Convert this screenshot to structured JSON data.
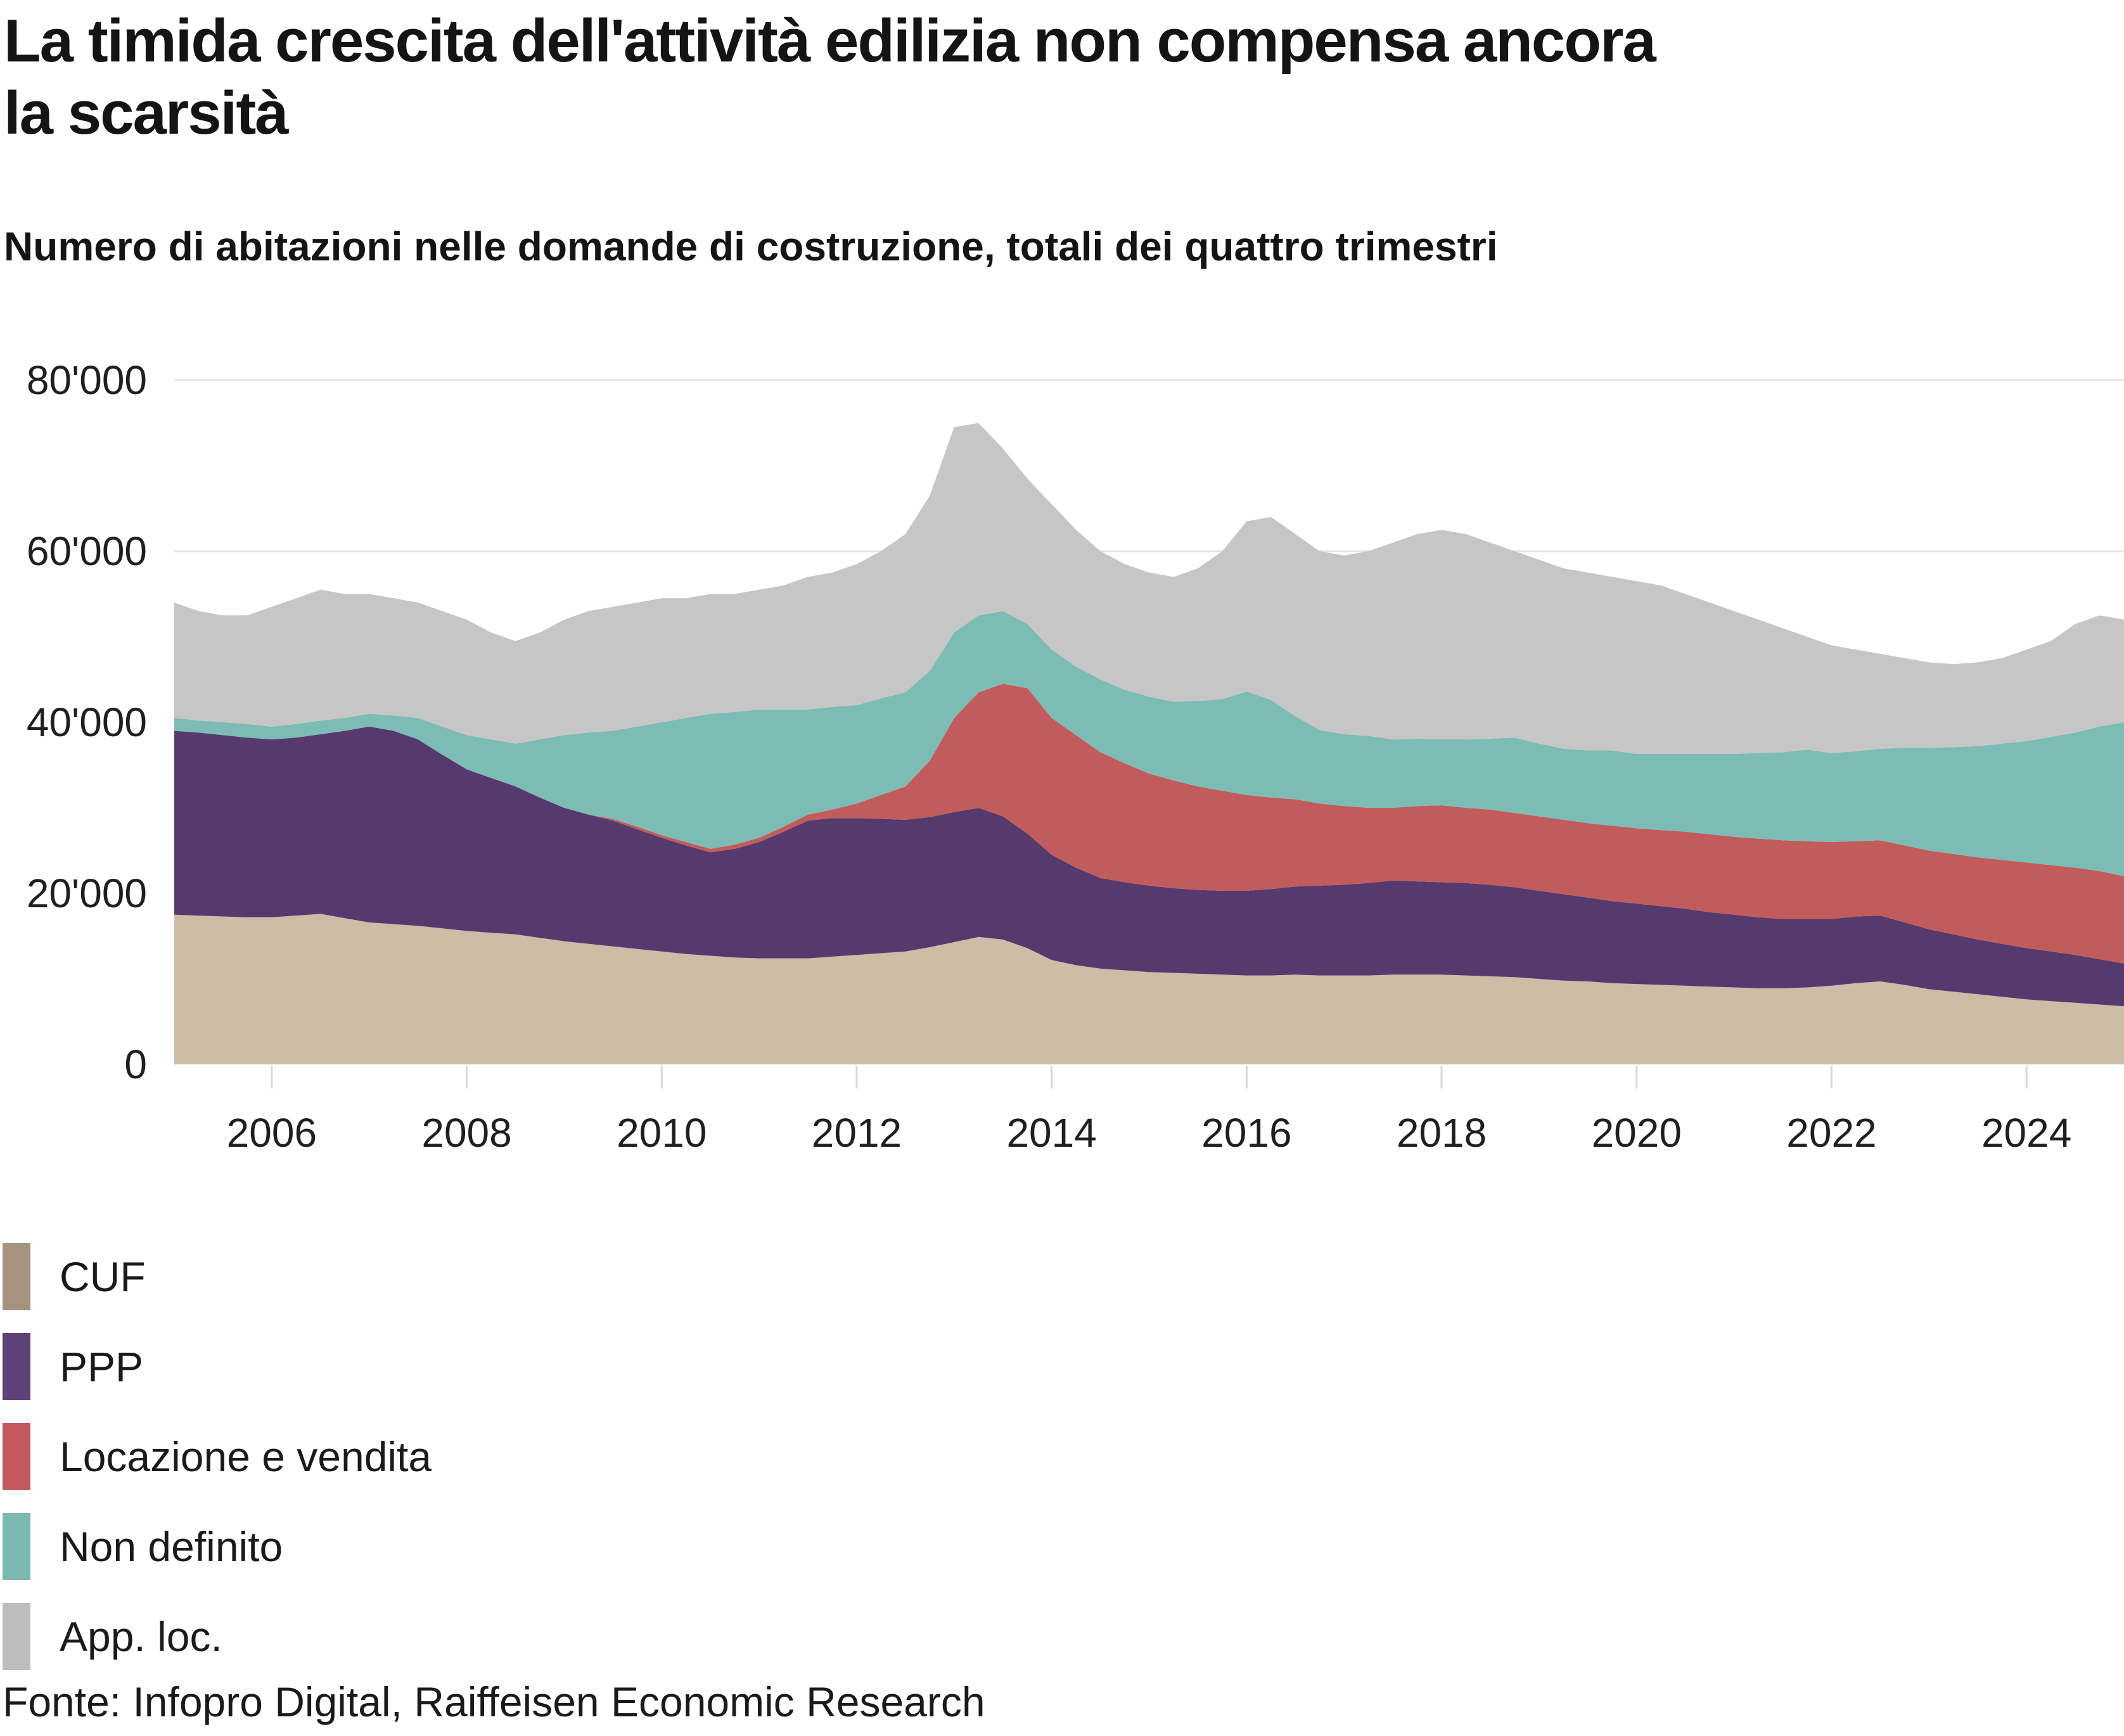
{
  "header": {
    "title_line1": "La timida crescita dell'attività edilizia non compensa ancora",
    "title_line2": "la scarsità",
    "subtitle": "Numero di abitazioni nelle domande di costruzione, totali dei quattro trimestri"
  },
  "source_line": "Fonte: Infopro Digital, Raiffeisen Economic Research",
  "legend": {
    "items": [
      {
        "label": "CUF",
        "color": "#a6937f"
      },
      {
        "label": "PPP",
        "color": "#5d4177"
      },
      {
        "label": "Locazione e vendita",
        "color": "#c45a5c"
      },
      {
        "label": "Non definito",
        "color": "#7ab8b1"
      },
      {
        "label": "App. loc.",
        "color": "#bdbdbd"
      }
    ]
  },
  "colors": {
    "background": "#ffffff",
    "gridline": "#e3e3e3",
    "tick": "#d8d8d8",
    "text": "#1a1a1a"
  },
  "chart_data": {
    "type": "area",
    "stacked": true,
    "title": "La timida crescita dell'attività edilizia non compensa ancora la scarsità",
    "subtitle": "Numero di abitazioni nelle domande di costruzione, totali dei quattro trimestri",
    "xlabel": "",
    "ylabel": "",
    "ylim": [
      0,
      80000
    ],
    "grid": "horizontal",
    "legend_position": "bottom-left",
    "x_start": 2005.0,
    "x_step": 0.25,
    "x_end": 2025.0,
    "x_ticks": [
      {
        "year": 2006,
        "label": "2006"
      },
      {
        "year": 2008,
        "label": "2008"
      },
      {
        "year": 2010,
        "label": "2010"
      },
      {
        "year": 2012,
        "label": "2012"
      },
      {
        "year": 2014,
        "label": "2014"
      },
      {
        "year": 2016,
        "label": "2016"
      },
      {
        "year": 2018,
        "label": "2018"
      },
      {
        "year": 2020,
        "label": "2020"
      },
      {
        "year": 2022,
        "label": "2022"
      },
      {
        "year": 2024,
        "label": "2024"
      }
    ],
    "y_ticks": [
      {
        "value": 0,
        "label": "0"
      },
      {
        "value": 20000,
        "label": "20'000"
      },
      {
        "value": 40000,
        "label": "40'000"
      },
      {
        "value": 60000,
        "label": "60'000"
      },
      {
        "value": 80000,
        "label": "80'000"
      }
    ],
    "series": [
      {
        "name": "CUF",
        "color": "#cdbca6",
        "legend_color": "#a6937f",
        "values": [
          17500,
          17400,
          17300,
          17200,
          17200,
          17400,
          17600,
          17100,
          16600,
          16400,
          16200,
          15900,
          15600,
          15400,
          15200,
          14800,
          14400,
          14100,
          13800,
          13500,
          13200,
          12900,
          12700,
          12500,
          12400,
          12400,
          12400,
          12600,
          12800,
          13000,
          13200,
          13700,
          14300,
          14900,
          14600,
          13600,
          12200,
          11600,
          11200,
          11000,
          10800,
          10700,
          10600,
          10500,
          10400,
          10400,
          10500,
          10400,
          10400,
          10400,
          10500,
          10500,
          10500,
          10400,
          10300,
          10200,
          10000,
          9800,
          9700,
          9500,
          9400,
          9300,
          9200,
          9100,
          9000,
          8900,
          8900,
          9000,
          9200,
          9500,
          9700,
          9300,
          8800,
          8500,
          8200,
          7900,
          7600,
          7400,
          7200,
          7000,
          6800
        ]
      },
      {
        "name": "PPP",
        "color": "#563a6e",
        "legend_color": "#5d4177",
        "values": [
          21500,
          21400,
          21200,
          21000,
          20800,
          20800,
          21000,
          21900,
          22900,
          22600,
          21800,
          20300,
          18900,
          18100,
          17300,
          16400,
          15600,
          15100,
          14700,
          14000,
          13300,
          12700,
          12100,
          12700,
          13600,
          14800,
          16100,
          16200,
          16000,
          15700,
          15400,
          15200,
          15200,
          15100,
          14400,
          13400,
          12300,
          11400,
          10600,
          10300,
          10100,
          9900,
          9800,
          9800,
          9900,
          10100,
          10300,
          10500,
          10600,
          10800,
          11000,
          10900,
          10800,
          10800,
          10700,
          10500,
          10300,
          10100,
          9800,
          9600,
          9400,
          9200,
          9000,
          8700,
          8500,
          8300,
          8100,
          8000,
          7800,
          7800,
          7700,
          7300,
          7000,
          6700,
          6400,
          6200,
          6000,
          5800,
          5600,
          5300,
          5000
        ]
      },
      {
        "name": "Locazione e vendita",
        "color": "#c25c5c",
        "legend_color": "#c45a5c",
        "values": [
          0,
          0,
          0,
          0,
          0,
          0,
          0,
          0,
          0,
          0,
          0,
          0,
          0,
          0,
          0,
          0,
          0,
          0,
          200,
          300,
          300,
          400,
          400,
          500,
          500,
          600,
          700,
          1000,
          1700,
          2800,
          3900,
          6600,
          11000,
          13500,
          15500,
          17000,
          16000,
          15500,
          14700,
          13900,
          13100,
          12600,
          12100,
          11700,
          11200,
          10700,
          10200,
          9600,
          9200,
          8800,
          8500,
          8800,
          9000,
          8800,
          8800,
          8700,
          8700,
          8700,
          8700,
          8800,
          8800,
          8900,
          9000,
          9100,
          9100,
          9200,
          9200,
          9100,
          9000,
          8800,
          8800,
          9000,
          9200,
          9400,
          9600,
          9800,
          10000,
          10100,
          10200,
          10300,
          10200
        ]
      },
      {
        "name": "Non definito",
        "color": "#7dbcb5",
        "legend_color": "#7ab8b1",
        "values": [
          1500,
          1400,
          1500,
          1600,
          1500,
          1600,
          1600,
          1500,
          1500,
          1800,
          2500,
          3300,
          4000,
          4500,
          5000,
          6800,
          8500,
          9600,
          10300,
          11700,
          13200,
          14500,
          15800,
          15500,
          15000,
          13700,
          12300,
          12000,
          11500,
          11300,
          11000,
          10500,
          10000,
          9000,
          8500,
          7500,
          8000,
          8000,
          8500,
          8600,
          9000,
          9200,
          10000,
          10700,
          12100,
          11400,
          9700,
          8600,
          8400,
          8400,
          8000,
          7900,
          7700,
          8000,
          8300,
          8800,
          8500,
          8300,
          8500,
          8800,
          8700,
          8900,
          9100,
          9400,
          9700,
          10000,
          10300,
          10700,
          10400,
          10500,
          10700,
          11400,
          12000,
          12500,
          13000,
          13600,
          14200,
          15000,
          15800,
          16900,
          18000
        ]
      },
      {
        "name": "App. loc.",
        "color": "#c6c6c6",
        "legend_color": "#bdbdbd",
        "values": [
          13500,
          12800,
          12500,
          12700,
          14000,
          14700,
          15300,
          14500,
          14000,
          13700,
          13500,
          13500,
          13500,
          12500,
          12000,
          12500,
          13500,
          14200,
          14500,
          14500,
          14500,
          14000,
          14000,
          13800,
          14000,
          14500,
          15500,
          15700,
          16500,
          17200,
          18500,
          20500,
          24000,
          22500,
          19000,
          17000,
          17000,
          16000,
          15000,
          14700,
          14500,
          14600,
          15500,
          17300,
          19900,
          21400,
          21300,
          20900,
          20900,
          21600,
          23000,
          23900,
          24500,
          24000,
          22900,
          21800,
          21500,
          21100,
          20800,
          20300,
          20200,
          19700,
          18700,
          17700,
          16700,
          15600,
          14500,
          13200,
          12600,
          11900,
          11100,
          10500,
          10000,
          9700,
          9800,
          10000,
          10700,
          11200,
          12700,
          13000,
          12000
        ]
      }
    ]
  }
}
